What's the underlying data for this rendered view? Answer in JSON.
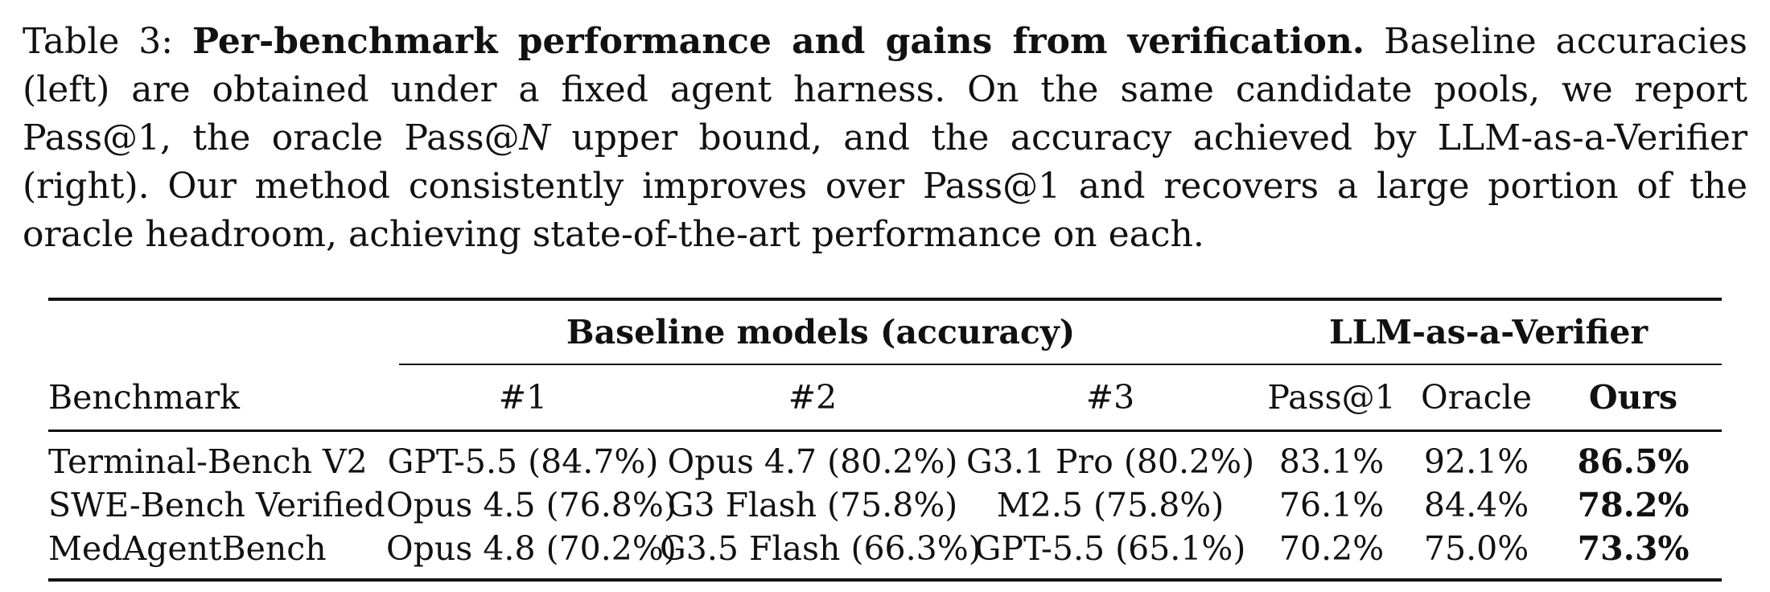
{
  "caption": {
    "label": "Table 3:",
    "title": "Per-benchmark performance and gains from verification.",
    "part1": "Baseline accuracies (left) are obtained under a fixed agent harness. On the same candidate pools, we report Pass@1, the oracle Pass@",
    "math_n": "N",
    "part2": " upper bound, and the accuracy achieved by LLM-as-a-Verifier (right). Our method consistently improves over Pass@1 and recovers a large portion of the oracle headroom, achieving state-of-the-art performance on each."
  },
  "table": {
    "group_headers": {
      "baseline": "Baseline models (accuracy)",
      "verifier": "LLM-as-a-Verifier"
    },
    "columns": {
      "benchmark": "Benchmark",
      "b1": "#1",
      "b2": "#2",
      "b3": "#3",
      "pass1": "Pass@1",
      "oracle": "Oracle",
      "ours": "Ours"
    },
    "rows": [
      {
        "benchmark": "Terminal-Bench V2",
        "b1": "GPT-5.5 (84.7%)",
        "b2": "Opus 4.7 (80.2%)",
        "b3": "G3.1 Pro (80.2%)",
        "pass1": "83.1%",
        "oracle": "92.1%",
        "ours": "86.5%"
      },
      {
        "benchmark": "SWE-Bench Verified",
        "b1": "Opus 4.5 (76.8%)",
        "b2": "G3 Flash (75.8%)",
        "b3": "M2.5 (75.8%)",
        "pass1": "76.1%",
        "oracle": "84.4%",
        "ours": "78.2%"
      },
      {
        "benchmark": "MedAgentBench",
        "b1": "Opus 4.8 (70.2%)",
        "b2": "G3.5 Flash (66.3%)",
        "b3": "GPT-5.5 (65.1%)",
        "pass1": "70.2%",
        "oracle": "75.0%",
        "ours": "73.3%"
      }
    ]
  }
}
